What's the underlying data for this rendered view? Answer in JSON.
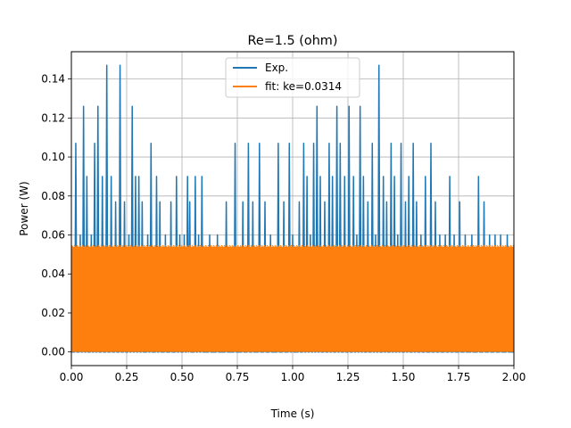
{
  "chart_data": {
    "type": "line",
    "title": "Re=1.5 (ohm)",
    "xlabel": "Time (s)",
    "ylabel": "Power (W)",
    "xlim": [
      0.0,
      2.0
    ],
    "ylim": [
      -0.007,
      0.154
    ],
    "grid": true,
    "legend_position": "upper center",
    "x_ticks": [
      0.0,
      0.25,
      0.5,
      0.75,
      1.0,
      1.25,
      1.5,
      1.75,
      2.0
    ],
    "x_tick_labels": [
      "0.00",
      "0.25",
      "0.50",
      "0.75",
      "1.00",
      "1.25",
      "1.50",
      "1.75",
      "2.00"
    ],
    "y_ticks": [
      0.0,
      0.02,
      0.04,
      0.06,
      0.08,
      0.1,
      0.12,
      0.14
    ],
    "y_tick_labels": [
      "0.00",
      "0.02",
      "0.04",
      "0.06",
      "0.08",
      "0.10",
      "0.12",
      "0.14"
    ],
    "series": [
      {
        "name": "Exp.",
        "color": "#1f77b4",
        "baseline": 0.0,
        "peaks": {
          "x": [
            0.02,
            0.04,
            0.055,
            0.07,
            0.09,
            0.105,
            0.12,
            0.14,
            0.16,
            0.18,
            0.2,
            0.22,
            0.24,
            0.26,
            0.275,
            0.29,
            0.305,
            0.32,
            0.345,
            0.36,
            0.385,
            0.4,
            0.425,
            0.45,
            0.475,
            0.49,
            0.51,
            0.525,
            0.535,
            0.56,
            0.575,
            0.59,
            0.625,
            0.66,
            0.7,
            0.74,
            0.775,
            0.8,
            0.82,
            0.85,
            0.875,
            0.9,
            0.935,
            0.96,
            0.985,
            1.0,
            1.03,
            1.05,
            1.065,
            1.08,
            1.095,
            1.11,
            1.125,
            1.145,
            1.165,
            1.18,
            1.2,
            1.215,
            1.235,
            1.255,
            1.275,
            1.29,
            1.305,
            1.32,
            1.34,
            1.36,
            1.375,
            1.39,
            1.41,
            1.425,
            1.445,
            1.46,
            1.475,
            1.49,
            1.51,
            1.525,
            1.545,
            1.56,
            1.58,
            1.6,
            1.625,
            1.645,
            1.665,
            1.69,
            1.71,
            1.73,
            1.755,
            1.78,
            1.81,
            1.84,
            1.865,
            1.89,
            1.915,
            1.94,
            1.97
          ],
          "y": [
            0.107,
            0.06,
            0.126,
            0.09,
            0.06,
            0.107,
            0.126,
            0.09,
            0.147,
            0.09,
            0.077,
            0.147,
            0.077,
            0.06,
            0.126,
            0.09,
            0.09,
            0.077,
            0.06,
            0.107,
            0.09,
            0.077,
            0.06,
            0.077,
            0.09,
            0.06,
            0.06,
            0.09,
            0.077,
            0.09,
            0.06,
            0.09,
            0.06,
            0.06,
            0.077,
            0.107,
            0.077,
            0.107,
            0.077,
            0.107,
            0.077,
            0.06,
            0.107,
            0.077,
            0.107,
            0.06,
            0.077,
            0.107,
            0.09,
            0.06,
            0.107,
            0.126,
            0.09,
            0.077,
            0.107,
            0.09,
            0.126,
            0.107,
            0.09,
            0.126,
            0.09,
            0.06,
            0.126,
            0.09,
            0.077,
            0.107,
            0.06,
            0.147,
            0.09,
            0.077,
            0.107,
            0.09,
            0.06,
            0.107,
            0.077,
            0.09,
            0.107,
            0.077,
            0.06,
            0.09,
            0.107,
            0.077,
            0.06,
            0.06,
            0.09,
            0.06,
            0.077,
            0.06,
            0.06,
            0.09,
            0.077,
            0.06,
            0.06,
            0.06,
            0.06
          ]
        }
      },
      {
        "name": "fit: ke=0.0314",
        "color": "#ff7f0e",
        "fill_min": 0.0,
        "fill_max": 0.054
      }
    ]
  }
}
